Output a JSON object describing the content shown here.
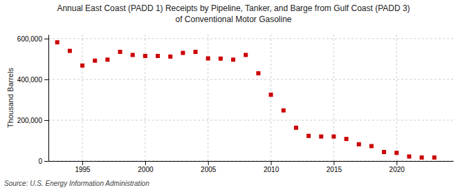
{
  "chart_data": {
    "type": "scatter",
    "title": "Annual East Coast (PADD 1) Receipts by Pipeline, Tanker, and Barge from Gulf Coast (PADD 3)",
    "subtitle": "of Conventional Motor Gasoline",
    "y_label": "Thousand Barrels",
    "annotations": [
      "Source: U.S. Energy Information Administration"
    ],
    "x": [
      1993,
      1994,
      1995,
      1996,
      1997,
      1998,
      1999,
      2000,
      2001,
      2002,
      2003,
      2004,
      2005,
      2006,
      2007,
      2008,
      2009,
      2010,
      2011,
      2012,
      2013,
      2014,
      2015,
      2016,
      2017,
      2018,
      2019,
      2020,
      2021,
      2022,
      2023
    ],
    "values": [
      582000,
      540000,
      468000,
      492000,
      497000,
      535000,
      520000,
      515000,
      515000,
      512000,
      530000,
      535000,
      503000,
      502000,
      497000,
      520000,
      430000,
      325000,
      248000,
      163000,
      123000,
      120000,
      120000,
      108000,
      82000,
      73000,
      44000,
      40000,
      22000,
      17000,
      17000
    ],
    "color": "#cc0000",
    "marker": "square",
    "xlim": [
      1992.3,
      2024.5
    ],
    "xticks": [
      1995,
      2000,
      2005,
      2010,
      2015,
      2020
    ],
    "ylim": [
      0,
      620000
    ],
    "yticks": [
      0,
      {
        "value": 200000,
        "label": "200,000"
      },
      {
        "value": 400000,
        "label": "400,000"
      },
      {
        "value": 600000,
        "label": "600,000"
      }
    ],
    "grid": true
  }
}
